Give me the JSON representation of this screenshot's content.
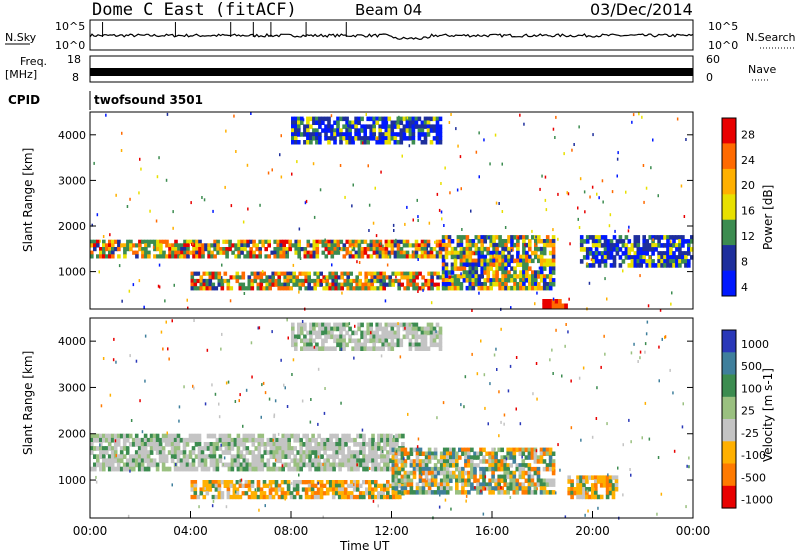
{
  "header": {
    "title": "Dome C East (fitACF)",
    "beam": "Beam 04",
    "date": "03/Dec/2014"
  },
  "noise_panel": {
    "left_label": "N.Sky",
    "right_label": "N.Search",
    "left_ticks": [
      "10^5",
      "10^0"
    ],
    "right_ticks": [
      "10^5",
      "10^0"
    ]
  },
  "freq_panel": {
    "left_label_1": "Freq.",
    "left_label_2": "[MHz]",
    "right_label": "Nave",
    "left_ticks": [
      "18",
      "8"
    ],
    "right_ticks": [
      "60",
      "0"
    ]
  },
  "cpid": {
    "label": "CPID",
    "value": "twofsound 3501"
  },
  "chart_data": [
    {
      "type": "heatmap",
      "name": "power",
      "ylabel": "Slant Range [km]",
      "colorbar_label": "Power [dB]",
      "colorbar_ticks": [
        "28",
        "24",
        "20",
        "16",
        "12",
        "8",
        "4"
      ],
      "colorbar_colors": [
        "#e80000",
        "#ff6a00",
        "#ffb000",
        "#e8e000",
        "#3c8c50",
        "#1e2f9c",
        "#0018ff"
      ],
      "ylim": [
        180,
        4500
      ],
      "yticks": [
        "1000",
        "2000",
        "3000",
        "4000"
      ],
      "xlim_hours": [
        0,
        24
      ],
      "bands": [
        {
          "t_start": 0.0,
          "t_end": 14.0,
          "r_low": 1300,
          "r_high": 1700,
          "level": "high"
        },
        {
          "t_start": 4.0,
          "t_end": 14.5,
          "r_low": 600,
          "r_high": 1000,
          "level": "high"
        },
        {
          "t_start": 14.0,
          "t_end": 18.5,
          "r_low": 600,
          "r_high": 1800,
          "level": "mid"
        },
        {
          "t_start": 18.0,
          "t_end": 19.0,
          "r_low": 200,
          "r_high": 400,
          "level": "max"
        },
        {
          "t_start": 19.5,
          "t_end": 24.0,
          "r_low": 1100,
          "r_high": 1800,
          "level": "low"
        },
        {
          "t_start": 8.0,
          "t_end": 14.0,
          "r_low": 3800,
          "r_high": 4400,
          "level": "low"
        }
      ]
    },
    {
      "type": "heatmap",
      "name": "velocity",
      "ylabel": "Slant Range [km]",
      "colorbar_label": "Velocity [m s-1]",
      "colorbar_ticks": [
        "1000",
        "500",
        "100",
        "25",
        "-25",
        "-100",
        "-500",
        "-1000"
      ],
      "colorbar_colors": [
        "#2a38b8",
        "#3f7f9c",
        "#3c8c50",
        "#9ac080",
        "#c4c4c4",
        "#ffb000",
        "#ff7a00",
        "#e80000"
      ],
      "ylim": [
        180,
        4500
      ],
      "yticks": [
        "1000",
        "2000",
        "3000",
        "4000"
      ],
      "xlim_hours": [
        0,
        24
      ],
      "bands": [
        {
          "t_start": 0.0,
          "t_end": 12.5,
          "r_low": 1200,
          "r_high": 2000,
          "level": "grey"
        },
        {
          "t_start": 4.0,
          "t_end": 12.5,
          "r_low": 600,
          "r_high": 1000,
          "level": "orange"
        },
        {
          "t_start": 12.0,
          "t_end": 18.5,
          "r_low": 700,
          "r_high": 1700,
          "level": "mixed"
        },
        {
          "t_start": 19.0,
          "t_end": 21.0,
          "r_low": 600,
          "r_high": 1100,
          "level": "orange"
        },
        {
          "t_start": 8.0,
          "t_end": 14.0,
          "r_low": 3800,
          "r_high": 4400,
          "level": "grey"
        }
      ]
    }
  ],
  "time_axis": {
    "ticks": [
      "00:00",
      "04:00",
      "08:00",
      "12:00",
      "16:00",
      "20:00",
      "00:00"
    ],
    "label": "Time UT"
  }
}
